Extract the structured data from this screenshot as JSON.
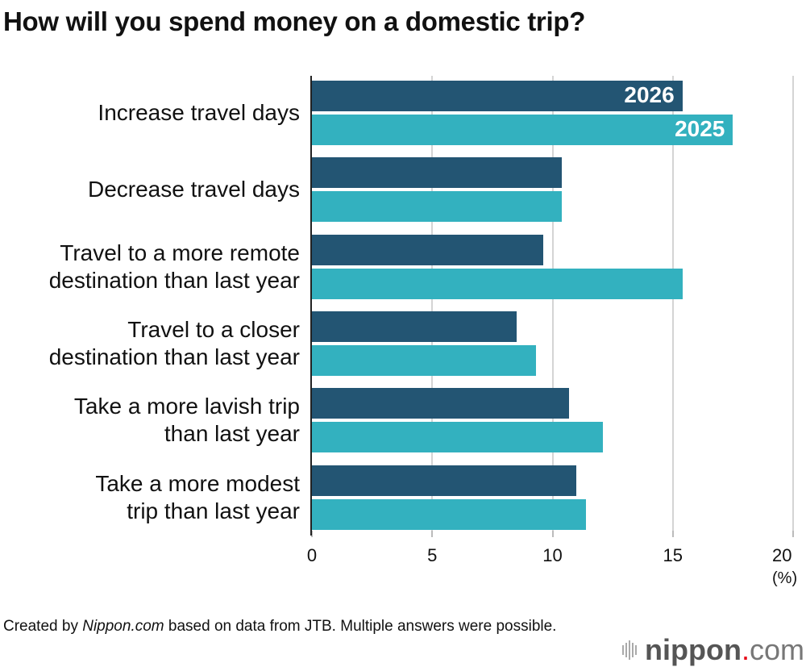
{
  "title": "How will you spend money on a domestic trip?",
  "chart_data": {
    "type": "bar",
    "orientation": "horizontal",
    "title": "How will you spend money on a domestic trip?",
    "xlabel": "(%)",
    "ylabel": "",
    "xlim": [
      0,
      20
    ],
    "xticks": [
      0,
      5,
      10,
      15,
      20
    ],
    "grid": true,
    "categories": [
      "Increase travel days",
      "Decrease travel days",
      "Travel to a more remote destination than last year",
      "Travel to a closer destination than last year",
      "Take a more lavish trip than last year",
      "Take a more modest trip than last year"
    ],
    "series": [
      {
        "name": "2026",
        "color": "#235573",
        "values": [
          15.4,
          10.4,
          9.6,
          8.5,
          10.7,
          11.0
        ]
      },
      {
        "name": "2025",
        "color": "#33b1bf",
        "values": [
          17.5,
          10.4,
          15.4,
          9.3,
          12.1,
          11.4
        ]
      }
    ],
    "legend": "inline labels on first bar pair"
  },
  "categories_display": [
    [
      "Increase travel days"
    ],
    [
      "Decrease travel days"
    ],
    [
      "Travel to a more remote",
      "destination than last year"
    ],
    [
      "Travel to a closer",
      "destination than last year"
    ],
    [
      "Take a more lavish trip",
      "than last year"
    ],
    [
      "Take a more modest",
      "trip than last year"
    ]
  ],
  "ticks": [
    "0",
    "5",
    "10",
    "15",
    "20"
  ],
  "unit": "(%)",
  "footer": {
    "prefix": "Created by ",
    "source_italic": "Nippon.com",
    "suffix": " based on data from JTB. Multiple answers were possible."
  },
  "logo": {
    "nip": "nippon",
    "dot": ".",
    "com": "com"
  }
}
